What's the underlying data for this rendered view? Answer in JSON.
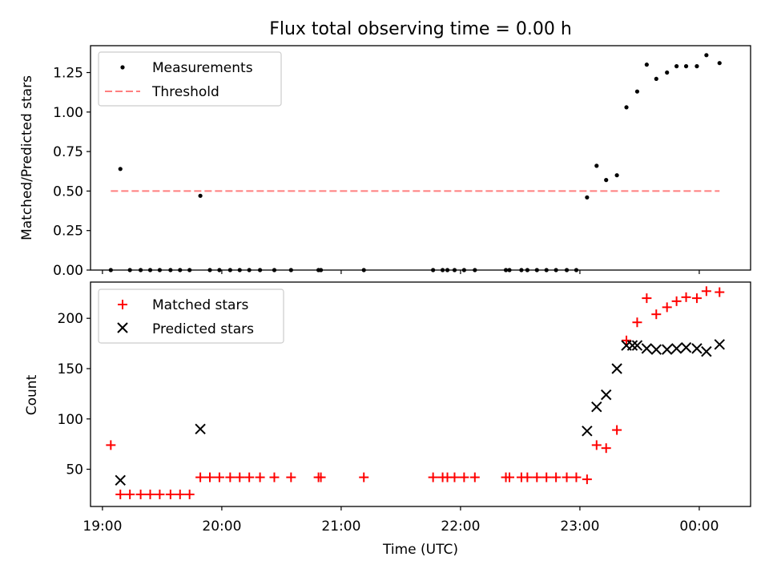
{
  "chart_data": [
    {
      "type": "scatter",
      "title": "Flux total observing time = 0.00 h",
      "ylabel": "Matched/Predicted stars",
      "xlabel": "",
      "xlim": [
        18.9,
        24.43
      ],
      "ylim": [
        0,
        1.42
      ],
      "yticks": [
        0.0,
        0.25,
        0.5,
        0.75,
        1.0,
        1.25
      ],
      "ytick_labels": [
        "0.00",
        "0.25",
        "0.50",
        "0.75",
        "1.00",
        "1.25"
      ],
      "legend_position": "top-left",
      "series": [
        {
          "name": "Measurements",
          "marker": "dot",
          "color": "#000000",
          "x": [
            19.07,
            19.15,
            19.23,
            19.32,
            19.4,
            19.48,
            19.57,
            19.65,
            19.73,
            19.82,
            19.9,
            19.98,
            20.07,
            20.15,
            20.23,
            20.32,
            20.44,
            20.58,
            20.81,
            20.83,
            21.19,
            21.77,
            21.85,
            21.89,
            21.95,
            22.03,
            22.12,
            22.38,
            22.41,
            22.51,
            22.56,
            22.64,
            22.72,
            22.8,
            22.89,
            22.97,
            23.06,
            23.14,
            23.22,
            23.31,
            23.39,
            23.48,
            23.56,
            23.64,
            23.73,
            23.81,
            23.89,
            23.98,
            24.06,
            24.17
          ],
          "y": [
            0.0,
            0.64,
            0.0,
            0.0,
            0.0,
            0.0,
            0.0,
            0.0,
            0.0,
            0.47,
            0.0,
            0.0,
            0.0,
            0.0,
            0.0,
            0.0,
            0.0,
            0.0,
            0.0,
            0.0,
            0.0,
            0.0,
            0.0,
            0.0,
            0.0,
            0.0,
            0.0,
            0.0,
            0.0,
            0.0,
            0.0,
            0.0,
            0.0,
            0.0,
            0.0,
            0.0,
            0.46,
            0.66,
            0.57,
            0.6,
            1.03,
            1.13,
            1.3,
            1.21,
            1.25,
            1.29,
            1.29,
            1.29,
            1.36,
            1.31
          ]
        },
        {
          "name": "Threshold",
          "style": "dashed-line",
          "color": "#ff7f7f",
          "x": [
            19.07,
            24.17
          ],
          "y": [
            0.5,
            0.5
          ]
        }
      ]
    },
    {
      "type": "scatter",
      "title": "",
      "ylabel": "Count",
      "xlabel": "Time (UTC)",
      "xlim": [
        18.9,
        24.43
      ],
      "ylim": [
        13,
        236
      ],
      "yticks": [
        50,
        100,
        150,
        200
      ],
      "ytick_labels": [
        "50",
        "100",
        "150",
        "200"
      ],
      "xticks": [
        19,
        20,
        21,
        22,
        23,
        24
      ],
      "xtick_labels": [
        "19:00",
        "20:00",
        "21:00",
        "22:00",
        "23:00",
        "00:00"
      ],
      "legend_position": "top-left",
      "series": [
        {
          "name": "Matched stars",
          "marker": "plus",
          "color": "#ff0000",
          "x": [
            19.07,
            19.15,
            19.23,
            19.32,
            19.4,
            19.48,
            19.57,
            19.65,
            19.73,
            19.82,
            19.9,
            19.98,
            20.07,
            20.15,
            20.23,
            20.32,
            20.44,
            20.58,
            20.81,
            20.83,
            21.19,
            21.77,
            21.85,
            21.89,
            21.95,
            22.03,
            22.12,
            22.38,
            22.41,
            22.51,
            22.56,
            22.64,
            22.72,
            22.8,
            22.89,
            22.97,
            23.06,
            23.14,
            23.22,
            23.31,
            23.39,
            23.48,
            23.56,
            23.64,
            23.73,
            23.81,
            23.89,
            23.98,
            24.06,
            24.17
          ],
          "y": [
            74,
            25,
            25,
            25,
            25,
            25,
            25,
            25,
            25,
            42,
            42,
            42,
            42,
            42,
            42,
            42,
            42,
            42,
            42,
            42,
            42,
            42,
            42,
            42,
            42,
            42,
            42,
            42,
            42,
            42,
            42,
            42,
            42,
            42,
            42,
            42,
            40,
            74,
            71,
            89,
            178,
            196,
            220,
            204,
            211,
            217,
            221,
            220,
            227,
            226
          ]
        },
        {
          "name": "Predicted stars",
          "marker": "x",
          "color": "#000000",
          "x": [
            19.15,
            19.82,
            23.06,
            23.14,
            23.22,
            23.31,
            23.39,
            23.44,
            23.48,
            23.56,
            23.64,
            23.73,
            23.81,
            23.89,
            23.98,
            24.06,
            24.17
          ],
          "y": [
            39,
            90,
            88,
            112,
            124,
            150,
            173,
            173,
            173,
            170,
            169,
            169,
            170,
            171,
            170,
            167,
            174
          ]
        }
      ]
    }
  ]
}
